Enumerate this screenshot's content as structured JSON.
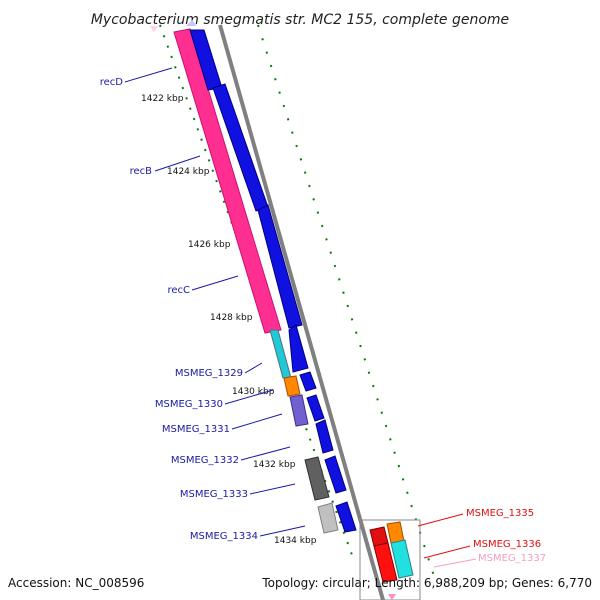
{
  "title": "Mycobacterium smegmatis str. MC2 155, complete genome",
  "accession": "Accession: NC_008596",
  "topology": "Topology: circular; Length: 6,988,209 bp; Genes: 6,770",
  "ticks": [
    "1422 kbp",
    "1424 kbp",
    "1426 kbp",
    "1428 kbp",
    "1430 kbp",
    "1432 kbp",
    "1434 kbp"
  ],
  "genes_left": [
    "recD",
    "recB",
    "recC",
    "MSMEG_1329",
    "MSMEG_1330",
    "MSMEG_1331",
    "MSMEG_1332",
    "MSMEG_1333",
    "MSMEG_1334"
  ],
  "genes_right": [
    "MSMEG_1335",
    "MSMEG_1336",
    "MSMEG_1337"
  ],
  "colors": {
    "pink": "#ff2f92",
    "blue": "#1010e0",
    "red_label": "#e01010",
    "navy_label": "#1a1aa6",
    "light_pink_label": "#f4a0c0",
    "tick_green": "#0a7a0a",
    "backbone": "#808080",
    "cyan": "#20e0e0",
    "orange": "#ff8800",
    "purple": "#7060d0",
    "dark_gray": "#606060",
    "light_gray": "#c0c0c0",
    "red": "#ff1010"
  }
}
